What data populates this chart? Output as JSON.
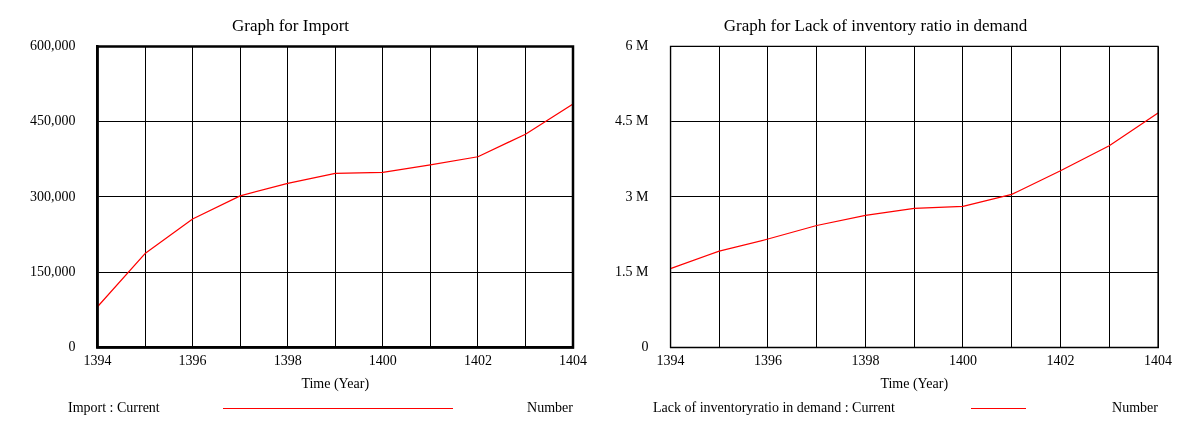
{
  "chart_data": [
    {
      "type": "line",
      "title": "Graph for Import",
      "xlabel": "Time (Year)",
      "x": [
        1394,
        1395,
        1396,
        1397,
        1398,
        1399,
        1400,
        1401,
        1402,
        1403,
        1404
      ],
      "series": [
        {
          "name": "Import : Current",
          "color": "#ff0000",
          "values": [
            81000,
            187000,
            256000,
            302000,
            327000,
            347000,
            349000,
            364000,
            380000,
            425000,
            485000
          ]
        }
      ],
      "xlim": [
        1394,
        1404
      ],
      "xticks": [
        1394,
        {
          "value": 1395,
          "label": null
        },
        1396,
        {
          "value": 1397,
          "label": null
        },
        1398,
        {
          "value": 1399,
          "label": null
        },
        1400,
        {
          "value": 1401,
          "label": null
        },
        1402,
        {
          "value": 1403,
          "label": null
        },
        1404
      ],
      "ylim": [
        0,
        600000
      ],
      "yticks": [
        0,
        {
          "value": 150000,
          "label": "150,000"
        },
        {
          "value": 300000,
          "label": "300,000"
        },
        {
          "value": 450000,
          "label": "450,000"
        },
        {
          "value": 600000,
          "label": "600,000"
        }
      ],
      "grid": true,
      "legend": "bottom",
      "marker": "none",
      "line_style": "solid",
      "annotations": [
        "Number"
      ]
    },
    {
      "type": "line",
      "title": "Graph for Lack of inventory ratio in demand",
      "xlabel": "Time (Year)",
      "x": [
        1394,
        1395,
        1396,
        1397,
        1398,
        1399,
        1400,
        1401,
        1402,
        1403,
        1404
      ],
      "series": [
        {
          "name": "Lack of inventoryratio in demand : Current",
          "color": "#ff0000",
          "values": [
            1.57,
            1.92,
            2.16,
            2.43,
            2.63,
            2.77,
            2.81,
            3.05,
            3.52,
            4.02,
            4.67
          ]
        }
      ],
      "xlim": [
        1394,
        1404
      ],
      "xticks": [
        1394,
        {
          "value": 1395,
          "label": null
        },
        1396,
        {
          "value": 1397,
          "label": null
        },
        1398,
        {
          "value": 1399,
          "label": null
        },
        1400,
        {
          "value": 1401,
          "label": null
        },
        1402,
        {
          "value": 1403,
          "label": null
        },
        1404
      ],
      "ylim": [
        0,
        6
      ],
      "yticks": [
        0,
        {
          "value": 1.5,
          "label": "1.5 M"
        },
        {
          "value": 3,
          "label": "3 M"
        },
        {
          "value": 4.5,
          "label": "4.5 M"
        },
        {
          "value": 6,
          "label": "6 M"
        }
      ],
      "grid": true,
      "legend": "bottom",
      "marker": "none",
      "line_style": "solid",
      "annotations": [
        "Number"
      ]
    }
  ]
}
